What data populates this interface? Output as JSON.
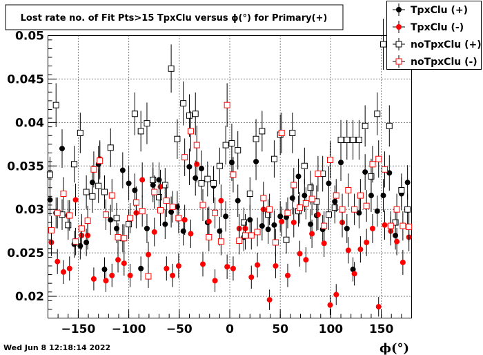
{
  "footer": {
    "timestamp": "Wed Jun  8 12:18:14 2022"
  },
  "chart_data": {
    "type": "scatter",
    "title": "Lost rate no. of Fit Pts>15 TpxClu versus ϕ(°) for Primary(+)",
    "xlabel": "ϕ(°)",
    "ylabel": "",
    "xlim": [
      -180,
      180
    ],
    "ylim": [
      0.0175,
      0.05
    ],
    "grid": true,
    "legend_position": "top-right",
    "xticks": [
      -150,
      -100,
      -50,
      0,
      50,
      100,
      150
    ],
    "xtick_labels": [
      "−150",
      "−100",
      "−50",
      "0",
      "50",
      "100",
      "150"
    ],
    "yticks": [
      0.02,
      0.025,
      0.03,
      0.035,
      0.04,
      0.045,
      0.05
    ],
    "ytick_labels": [
      "0.02",
      "0.025",
      "0.03",
      "0.035",
      "0.04",
      "0.045",
      "0.05"
    ],
    "x": [
      -178,
      -172,
      -166,
      -160,
      -154,
      -148,
      -142,
      -136,
      -130,
      -124,
      -118,
      -112,
      -106,
      -100,
      -94,
      -88,
      -82,
      -76,
      -70,
      -64,
      -58,
      -52,
      -46,
      -40,
      -34,
      -28,
      -22,
      -16,
      -10,
      -4,
      2,
      8,
      14,
      20,
      26,
      32,
      38,
      44,
      50,
      56,
      62,
      68,
      74,
      80,
      86,
      92,
      98,
      104,
      110,
      116,
      122,
      128,
      134,
      140,
      146,
      152,
      158,
      164,
      170,
      176
    ],
    "series": [
      {
        "name": "TpxClu (+)",
        "marker": "filled-circle",
        "color": "#000000",
        "values": [
          0.0311,
          0.0296,
          0.037,
          0.0293,
          0.026,
          0.0258,
          0.0262,
          0.0331,
          0.0352,
          0.0231,
          0.0288,
          0.0278,
          0.0345,
          0.033,
          0.0322,
          0.0232,
          0.0278,
          0.0328,
          0.0334,
          0.0283,
          0.0297,
          0.0303,
          0.0275,
          0.0349,
          0.0336,
          0.0347,
          0.0285,
          0.0327,
          0.0275,
          0.0292,
          0.0354,
          0.031,
          0.0268,
          0.0288,
          0.0355,
          0.0281,
          0.0277,
          0.0282,
          0.0292,
          0.0291,
          0.0313,
          0.0338,
          0.0316,
          0.0283,
          0.0293,
          0.0277,
          0.033,
          0.0309,
          0.0354,
          0.0278,
          0.0231,
          0.0296,
          0.0343,
          0.0316,
          0.0298,
          0.0316,
          0.0342,
          0.027,
          0.0318,
          0.0331
        ]
      },
      {
        "name": "TpxClu (-)",
        "marker": "filled-circle",
        "color": "#ff0000",
        "values": [
          0.0262,
          0.024,
          0.0228,
          0.0232,
          0.0311,
          0.027,
          0.027,
          0.022,
          0.0358,
          0.0218,
          0.0224,
          0.0242,
          0.0238,
          0.0224,
          0.0296,
          0.0334,
          0.0248,
          0.0274,
          0.0326,
          0.0232,
          0.0224,
          0.0235,
          0.0288,
          0.0272,
          0.0352,
          0.0237,
          0.0286,
          0.0218,
          0.031,
          0.0234,
          0.0232,
          0.0278,
          0.0278,
          0.0222,
          0.0236,
          0.03,
          0.0196,
          0.0235,
          0.0286,
          0.0224,
          0.0285,
          0.0249,
          0.0242,
          0.0272,
          0.0294,
          0.0261,
          0.019,
          0.0202,
          0.0285,
          0.0253,
          0.0226,
          0.0254,
          0.0262,
          0.0278,
          0.0188,
          0.0282,
          0.0275,
          0.0263,
          0.0239,
          0.0268
        ]
      },
      {
        "name": "noTpxClu (+)",
        "marker": "open-square",
        "color": "#000000",
        "values": [
          0.034,
          0.042,
          0.0294,
          0.0282,
          0.0352,
          0.0388,
          0.032,
          0.0315,
          0.0327,
          0.032,
          0.0371,
          0.029,
          0.0267,
          0.0283,
          0.041,
          0.039,
          0.0399,
          0.0334,
          0.0314,
          0.0328,
          0.0462,
          0.0381,
          0.0422,
          0.0408,
          0.041,
          0.033,
          0.0335,
          0.033,
          0.035,
          0.0374,
          0.0376,
          0.0368,
          0.0285,
          0.0318,
          0.0381,
          0.039,
          0.0294,
          0.0358,
          0.0386,
          0.0265,
          0.0388,
          0.0298,
          0.035,
          0.0325,
          0.0309,
          0.0341,
          0.0294,
          0.0302,
          0.038,
          0.038,
          0.038,
          0.038,
          0.0396,
          0.0338,
          0.041,
          0.049,
          0.0396,
          0.0285,
          0.0322,
          0.03
        ]
      },
      {
        "name": "noTpxClu (-)",
        "marker": "open-square",
        "color": "#ff0000",
        "values": [
          0.0276,
          0.0296,
          0.0318,
          0.0293,
          0.0263,
          0.0278,
          0.0287,
          0.0346,
          0.0356,
          0.0294,
          0.0316,
          0.0268,
          0.0267,
          0.029,
          0.0308,
          0.0298,
          0.0223,
          0.032,
          0.0299,
          0.031,
          0.0303,
          0.029,
          0.036,
          0.039,
          0.0374,
          0.0305,
          0.0268,
          0.0296,
          0.0263,
          0.042,
          0.034,
          0.0264,
          0.027,
          0.027,
          0.0274,
          0.0313,
          0.03,
          0.0262,
          0.0388,
          0.0296,
          0.0328,
          0.0302,
          0.0307,
          0.0312,
          0.0341,
          0.0281,
          0.0357,
          0.0316,
          0.03,
          0.0322,
          0.03,
          0.0316,
          0.0304,
          0.0352,
          0.0358,
          0.0346,
          0.0281,
          0.03,
          0.0281,
          0.028
        ]
      }
    ]
  }
}
